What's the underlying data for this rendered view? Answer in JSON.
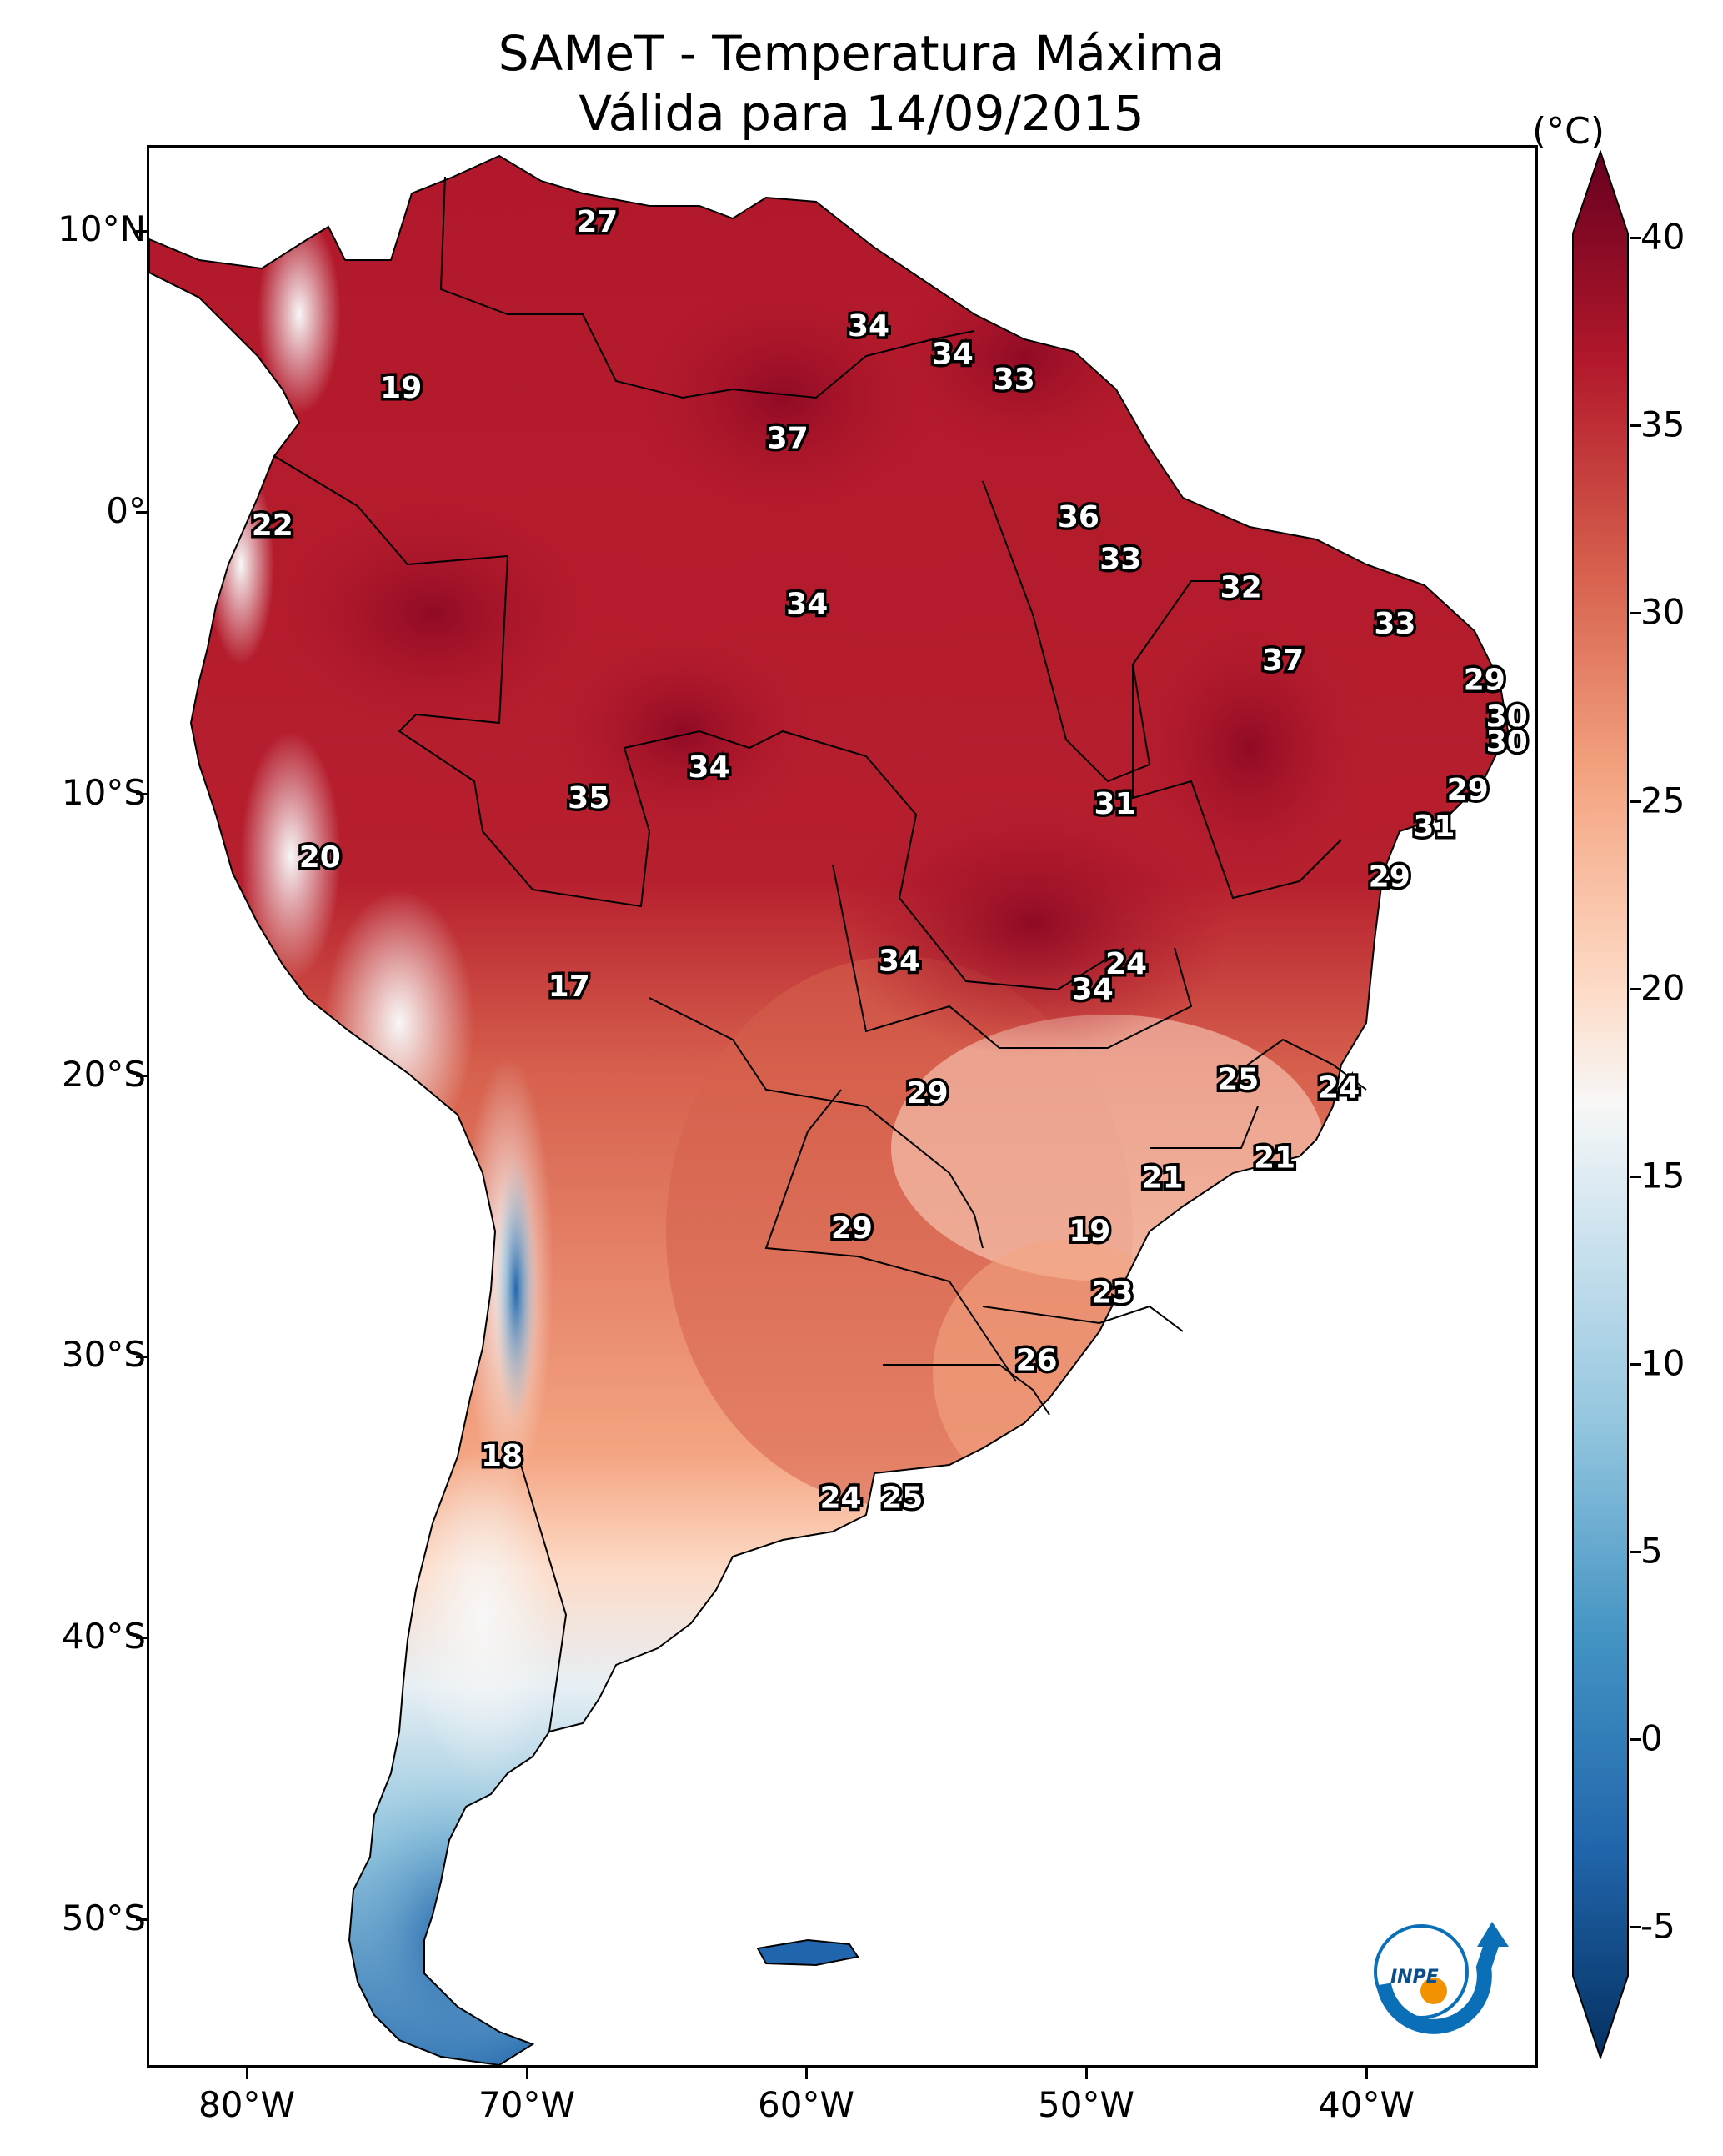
{
  "title": {
    "line1": "SAMeT - Temperatura Máxima",
    "line2": "Válida para 14/09/2015"
  },
  "axes": {
    "lat_ticks": [
      "10°N",
      "0°",
      "10°S",
      "20°S",
      "30°S",
      "40°S",
      "50°S"
    ],
    "lon_ticks": [
      "80°W",
      "70°W",
      "60°W",
      "50°W",
      "40°W"
    ]
  },
  "colorbar": {
    "unit": "(°C)",
    "ticks": [
      "40",
      "35",
      "30",
      "25",
      "20",
      "15",
      "10",
      "5",
      "0",
      "-5"
    ],
    "range": [
      -5,
      40
    ],
    "colors": [
      "#053061",
      "#2166ac",
      "#4393c3",
      "#92c5de",
      "#f7f7f7",
      "#fddbc7",
      "#f4a582",
      "#d6604d",
      "#b2182b",
      "#67001f"
    ]
  },
  "logo": {
    "text": "INPE",
    "colors": [
      "#0b6fb8",
      "#f39200"
    ]
  },
  "temperature_labels": [
    {
      "value": "27",
      "lon": -67.5,
      "lat": 10.5
    },
    {
      "value": "34",
      "lon": -57.8,
      "lat": 6.8
    },
    {
      "value": "34",
      "lon": -54.8,
      "lat": 5.8
    },
    {
      "value": "33",
      "lon": -52.6,
      "lat": 4.9
    },
    {
      "value": "19",
      "lon": -74.5,
      "lat": 4.6
    },
    {
      "value": "37",
      "lon": -60.7,
      "lat": 2.8
    },
    {
      "value": "36",
      "lon": -50.3,
      "lat": 0.0
    },
    {
      "value": "22",
      "lon": -79.1,
      "lat": -0.3
    },
    {
      "value": "33",
      "lon": -48.8,
      "lat": -1.5
    },
    {
      "value": "32",
      "lon": -44.5,
      "lat": -2.5
    },
    {
      "value": "34",
      "lon": -60.0,
      "lat": -3.1
    },
    {
      "value": "33",
      "lon": -39.0,
      "lat": -3.8
    },
    {
      "value": "37",
      "lon": -43.0,
      "lat": -5.1
    },
    {
      "value": "29",
      "lon": -35.8,
      "lat": -5.8
    },
    {
      "value": "30",
      "lon": -35.0,
      "lat": -7.1
    },
    {
      "value": "30",
      "lon": -35.0,
      "lat": -8.0
    },
    {
      "value": "34",
      "lon": -63.5,
      "lat": -8.9
    },
    {
      "value": "29",
      "lon": -36.4,
      "lat": -9.7
    },
    {
      "value": "35",
      "lon": -67.8,
      "lat": -10.0
    },
    {
      "value": "31",
      "lon": -49.0,
      "lat": -10.2
    },
    {
      "value": "31",
      "lon": -37.6,
      "lat": -11.0
    },
    {
      "value": "20",
      "lon": -77.4,
      "lat": -12.1
    },
    {
      "value": "29",
      "lon": -39.2,
      "lat": -12.8
    },
    {
      "value": "34",
      "lon": -56.7,
      "lat": -15.8
    },
    {
      "value": "24",
      "lon": -48.6,
      "lat": -15.9
    },
    {
      "value": "17",
      "lon": -68.5,
      "lat": -16.7
    },
    {
      "value": "34",
      "lon": -49.8,
      "lat": -16.8
    },
    {
      "value": "25",
      "lon": -44.6,
      "lat": -20.0
    },
    {
      "value": "24",
      "lon": -41.0,
      "lat": -20.3
    },
    {
      "value": "29",
      "lon": -55.7,
      "lat": -20.5
    },
    {
      "value": "21",
      "lon": -43.3,
      "lat": -22.8
    },
    {
      "value": "21",
      "lon": -47.3,
      "lat": -23.5
    },
    {
      "value": "29",
      "lon": -58.4,
      "lat": -25.3
    },
    {
      "value": "19",
      "lon": -49.9,
      "lat": -25.4
    },
    {
      "value": "23",
      "lon": -49.1,
      "lat": -27.6
    },
    {
      "value": "26",
      "lon": -51.8,
      "lat": -30.0
    },
    {
      "value": "18",
      "lon": -70.9,
      "lat": -33.4
    },
    {
      "value": "24",
      "lon": -58.8,
      "lat": -34.9
    },
    {
      "value": "25",
      "lon": -56.6,
      "lat": -34.9
    }
  ]
}
